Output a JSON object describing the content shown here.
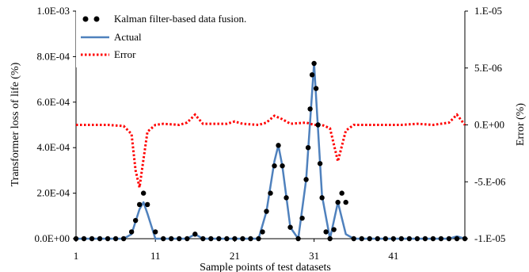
{
  "chart_data": {
    "type": "line",
    "title": "",
    "xlabel": "Sample points of test datasets",
    "ylabel": "Transformer  loss of life (%)",
    "y2label": "Error  (%)",
    "xlim": [
      1,
      50
    ],
    "ylim": [
      0,
      0.001
    ],
    "y2lim": [
      -1e-05,
      1e-05
    ],
    "xticks": [
      1,
      11,
      21,
      31,
      41
    ],
    "yticks": [
      0,
      0.0002,
      0.0004,
      0.0006,
      0.0008,
      0.001
    ],
    "ytick_labels": [
      "0.0E+00",
      "2.0E-04",
      "4.0E-04",
      "6.0E-04",
      "8.0E-04",
      "1.0E-03"
    ],
    "y2ticks": [
      -1e-05,
      -5e-06,
      0,
      5e-06,
      1e-05
    ],
    "y2tick_labels": [
      "-1.E-05",
      "-5.E-06",
      "0.E+00",
      "5.E-06",
      "1.E-05"
    ],
    "grid": false,
    "legend_position": "top-left",
    "series": [
      {
        "name": "Kalman filter-based data fusion.",
        "style": "dots",
        "color": "#000000",
        "axis": "left",
        "x": [
          1,
          2,
          3,
          4,
          5,
          6,
          7,
          8,
          8.5,
          9,
          9.5,
          10,
          11,
          12,
          13,
          14,
          15,
          16,
          17,
          18,
          19,
          20,
          21,
          22,
          23,
          24,
          24.5,
          25,
          25.5,
          26,
          26.5,
          27,
          27.5,
          28,
          29,
          29.5,
          30,
          30.25,
          30.5,
          30.75,
          31,
          31.25,
          31.5,
          31.75,
          32,
          32.5,
          33,
          33.5,
          34,
          34.5,
          35,
          36,
          37,
          38,
          39,
          40,
          41,
          42,
          43,
          44,
          45,
          46,
          47,
          48,
          49,
          50
        ],
        "values": [
          0,
          0,
          0,
          0,
          0,
          0,
          0,
          3e-05,
          8e-05,
          0.00015,
          0.0002,
          0.00015,
          3e-05,
          0,
          0,
          0,
          0,
          2e-05,
          0,
          0,
          0,
          0,
          0,
          0,
          0,
          0,
          3e-05,
          0.00012,
          0.0002,
          0.00032,
          0.00041,
          0.00032,
          0.00018,
          5e-05,
          0,
          9e-05,
          0.00026,
          0.0004,
          0.00057,
          0.00072,
          0.00077,
          0.00066,
          0.0005,
          0.00033,
          0.00018,
          3e-05,
          0,
          4e-05,
          0.00016,
          0.0002,
          0.00016,
          0,
          0,
          0,
          0,
          0,
          0,
          0,
          0,
          0,
          0,
          0,
          0,
          0,
          0,
          0
        ]
      },
      {
        "name": "Actual",
        "style": "line",
        "color": "#4f81bd",
        "axis": "left",
        "x": [
          1,
          7,
          8,
          9,
          9.5,
          10,
          11,
          15,
          16,
          17,
          24,
          25,
          26,
          26.5,
          27,
          28,
          29,
          30,
          31,
          32,
          33,
          34,
          35,
          36,
          48,
          49,
          50
        ],
        "values": [
          0,
          0,
          2e-05,
          0.00013,
          0.00016,
          0.00011,
          0,
          0,
          2e-05,
          0,
          0,
          0.00012,
          0.00034,
          0.00041,
          0.00032,
          5e-05,
          0,
          0.00026,
          0.00077,
          0.00019,
          0,
          0.00016,
          2e-05,
          0,
          0,
          1e-05,
          0
        ]
      },
      {
        "name": "Error",
        "style": "dotted",
        "color": "#ff0000",
        "axis": "right",
        "x": [
          1,
          5,
          7,
          8,
          8.5,
          9,
          9.5,
          10,
          11,
          12,
          14,
          15,
          16,
          17,
          18,
          20,
          21,
          22,
          24,
          25,
          26,
          27,
          28,
          30,
          31,
          32,
          33,
          34,
          35,
          36,
          38,
          40,
          42,
          44,
          46,
          48,
          49,
          50
        ],
        "values": [
          0,
          0,
          -1e-07,
          -8e-07,
          -4e-06,
          -5.5e-06,
          -3e-06,
          -6e-07,
          0,
          1e-07,
          0,
          2e-07,
          9e-07,
          1e-07,
          1e-07,
          1e-07,
          3e-07,
          1e-07,
          0,
          2e-07,
          8e-07,
          5e-07,
          1e-07,
          2e-07,
          0,
          0,
          -3e-07,
          -3.2e-06,
          -5e-07,
          0,
          0,
          0,
          0,
          1e-07,
          0,
          2e-07,
          9e-07,
          0
        ]
      }
    ]
  }
}
